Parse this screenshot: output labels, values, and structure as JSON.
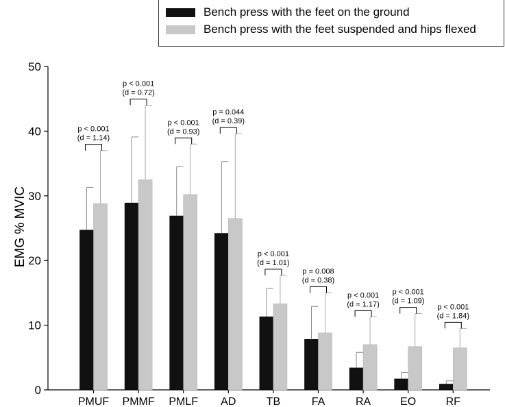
{
  "chart_data": {
    "type": "bar",
    "ylabel": "EMG % MVIC",
    "ylim": [
      0,
      50
    ],
    "yticks": [
      0,
      10,
      20,
      30,
      40,
      50
    ],
    "categories": [
      "PMUF",
      "PMMF",
      "PMLF",
      "AD",
      "TB",
      "FA",
      "RA",
      "EO",
      "RF"
    ],
    "series": [
      {
        "name": "Bench press with the feet on the ground",
        "color": "#111111",
        "values": [
          24.7,
          28.9,
          26.9,
          24.2,
          11.3,
          7.8,
          3.4,
          1.7,
          0.9
        ],
        "sd": [
          6.6,
          10.2,
          7.6,
          11.1,
          4.4,
          5.1,
          2.4,
          1.0,
          0.5
        ]
      },
      {
        "name": "Bench press with the feet suspended and hips flexed",
        "color": "#c8c8c8",
        "values": [
          28.8,
          32.5,
          30.2,
          26.5,
          13.3,
          8.8,
          7.0,
          6.7,
          6.5
        ],
        "sd": [
          8.2,
          11.5,
          7.8,
          13.1,
          4.4,
          6.2,
          4.3,
          5.1,
          3.0
        ]
      }
    ],
    "annotations": [
      {
        "p": "p < 0.001",
        "d": "(d  = 1.14)"
      },
      {
        "p": "p < 0.001",
        "d": "(d = 0.72)"
      },
      {
        "p": "p < 0.001",
        "d": "(d = 0.93)"
      },
      {
        "p": "p = 0.044",
        "d": "(d = 0.39)"
      },
      {
        "p": "p < 0.001",
        "d": "(d = 1.01)"
      },
      {
        "p": "p = 0.008",
        "d": "(d = 0.38)"
      },
      {
        "p": "p < 0.001",
        "d": "(d = 1.17)"
      },
      {
        "p": "p < 0.001",
        "d": "(d = 1.09)"
      },
      {
        "p": "p < 0.001",
        "d": "(d = 1.84)"
      }
    ],
    "legend_position": "top-right"
  }
}
